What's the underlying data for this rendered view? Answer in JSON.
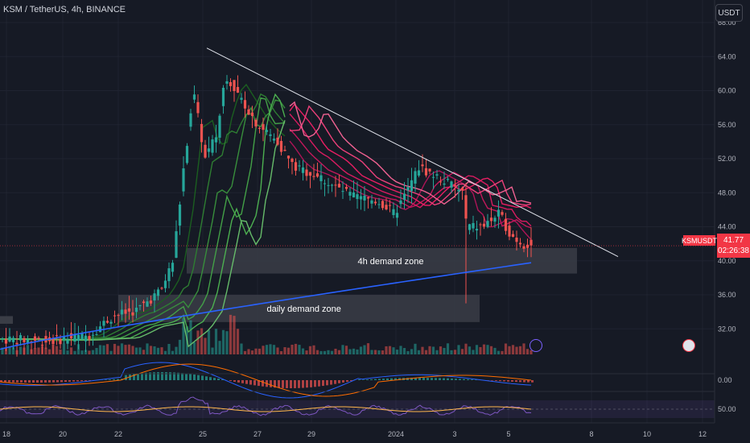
{
  "header": {
    "title": "KSM / TetherUS, 4h, BINANCE",
    "unit_button": "USDT"
  },
  "price_readout": {
    "symbol": "KSMUSDT",
    "price": "41.77",
    "countdown": "02:26:38"
  },
  "colors": {
    "up": "#26a69a",
    "down": "#ef5350",
    "ema_fast": "#2e7d32",
    "ema_slow": "#e91e63",
    "ma_long": "#2962ff",
    "zone": "#3a3d46"
  },
  "chart_data": {
    "type": "candlestick",
    "symbol": "KSM / TetherUS",
    "interval": "4h",
    "exchange": "BINANCE",
    "y_axis": {
      "ticks": [
        "68.00",
        "64.00",
        "60.00",
        "56.00",
        "52.00",
        "48.00",
        "44.00",
        "40.00",
        "36.00",
        "32.00"
      ],
      "range": [
        29,
        68
      ]
    },
    "x_axis": {
      "ticks": [
        "18",
        "20",
        "22",
        "25",
        "27",
        "29",
        "2024",
        "3",
        "5",
        "8",
        "10",
        "12"
      ]
    },
    "annotations": [
      {
        "label": "4h demand zone",
        "low": 38.5,
        "high": 41.5
      },
      {
        "label": "daily demand zone",
        "low": 32.8,
        "high": 36.0
      }
    ],
    "trendline": {
      "from": [
        25,
        65
      ],
      "to": [
        12,
        40.5
      ]
    },
    "last_price": 41.77,
    "lower_panels": [
      {
        "name": "macd",
        "tick": "0.00"
      },
      {
        "name": "rsi",
        "tick": "50.00"
      }
    ]
  }
}
